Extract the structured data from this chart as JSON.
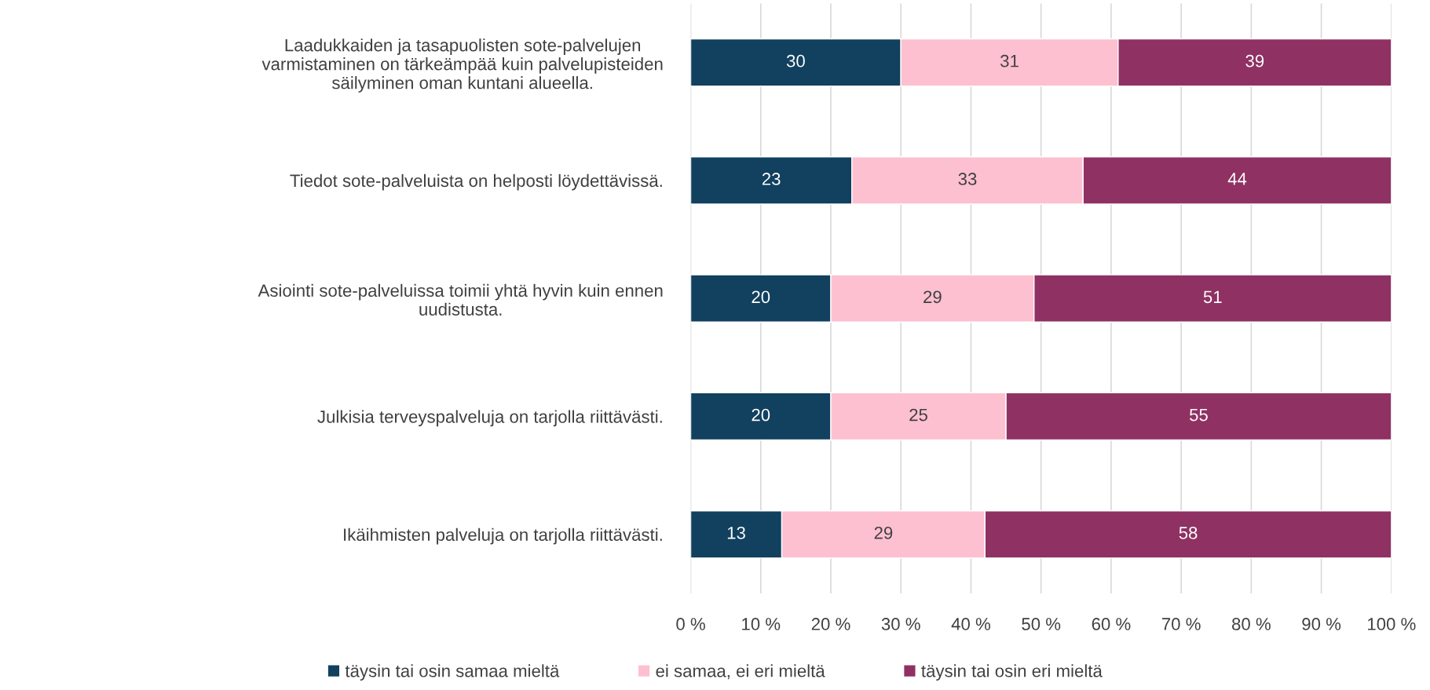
{
  "chart_data": {
    "type": "bar",
    "orientation": "horizontal",
    "stacked": true,
    "categories": [
      "Laadukkaiden ja tasapuolisten sote-palvelujen\nvarmistaminen on tärkeämpää kuin palvelupisteiden\nsäilyminen oman kuntani alueella.",
      "Tiedot sote-palveluista on helposti löydettävissä.",
      "Asiointi sote-palveluissa toimii yhtä hyvin kuin ennen\nuudistusta.",
      "Julkisia terveyspalveluja on tarjolla riittävästi.",
      "Ikäihmisten palveluja on tarjolla riittävästi."
    ],
    "series": [
      {
        "name": "täysin tai osin samaa mieltä",
        "color": "#12405f",
        "values": [
          30,
          23,
          20,
          20,
          13
        ]
      },
      {
        "name": "ei samaa, ei eri mieltä",
        "color": "#fdc0d0",
        "values": [
          31,
          33,
          29,
          25,
          29
        ]
      },
      {
        "name": "täysin tai osin eri mieltä",
        "color": "#8f3163",
        "values": [
          39,
          44,
          51,
          55,
          58
        ]
      }
    ],
    "xlim": [
      0,
      100
    ],
    "xticks": [
      {
        "value": 0,
        "label": "0 %"
      },
      {
        "value": 10,
        "label": "10 %"
      },
      {
        "value": 20,
        "label": "20 %"
      },
      {
        "value": 30,
        "label": "30 %"
      },
      {
        "value": 40,
        "label": "40 %"
      },
      {
        "value": 50,
        "label": "50 %"
      },
      {
        "value": 60,
        "label": "60 %"
      },
      {
        "value": 70,
        "label": "70 %"
      },
      {
        "value": 80,
        "label": "80 %"
      },
      {
        "value": 90,
        "label": "90 %"
      },
      {
        "value": 100,
        "label": "100 %"
      }
    ],
    "grid": "x",
    "data_labels": true,
    "legend": "bottom"
  }
}
